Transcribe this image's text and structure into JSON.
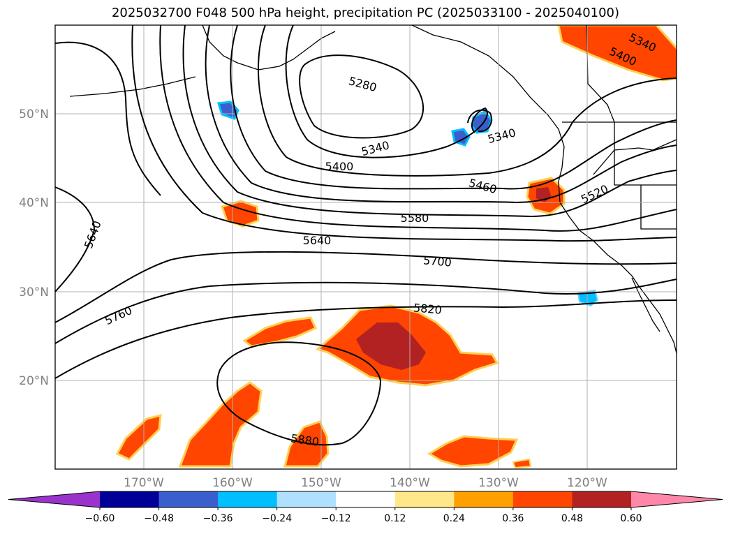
{
  "title": "2025032700 F048 500 hPa height, precipitation PC (2025033100 - 2025040100)",
  "map": {
    "lat_labels": [
      "50°N",
      "40°N",
      "30°N",
      "20°N"
    ],
    "lon_labels": [
      "170°W",
      "160°W",
      "150°W",
      "140°W",
      "130°W",
      "120°W"
    ],
    "contour_labels": [
      "5280",
      "5340",
      "5340",
      "5340",
      "5400",
      "5400",
      "5460",
      "5520",
      "5580",
      "5640",
      "5640",
      "5700",
      "5760",
      "5820",
      "5880"
    ],
    "gridlines": true,
    "fill_colors": {
      "strong_positive": "#b22222",
      "positive": "#ff4500",
      "weak_positive": "#ffe08a",
      "negative": "#00bfff",
      "strong_negative": "#3a5fcd"
    }
  },
  "colorbar": {
    "ticks": [
      "−0.60",
      "−0.48",
      "−0.36",
      "−0.24",
      "−0.12",
      "0.12",
      "0.24",
      "0.36",
      "0.48",
      "0.60"
    ],
    "colors": [
      "#9933cc",
      "#000099",
      "#3a5fcd",
      "#00bfff",
      "#b0e0ff",
      "#ffffff",
      "#ffe88a",
      "#ffa000",
      "#ff4500",
      "#b22222",
      "#ff88aa"
    ]
  }
}
